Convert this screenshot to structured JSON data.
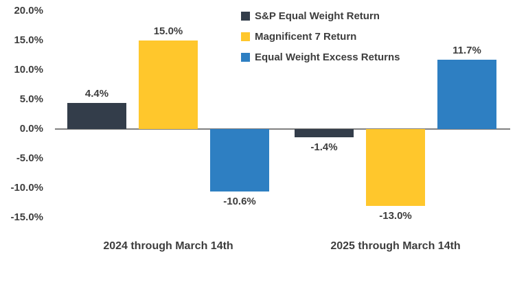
{
  "chart_data": {
    "type": "bar",
    "title": "",
    "categories": [
      "2024 through March 14th",
      "2025 through March 14th"
    ],
    "series": [
      {
        "name": "S&P Equal Weight Return",
        "color": "#333D4A",
        "values": [
          4.4,
          -1.4
        ],
        "value_labels": [
          "4.4%",
          "-1.4%"
        ]
      },
      {
        "name": "Magnificent 7 Return",
        "color": "#FFC72C",
        "values": [
          15.0,
          -13.0
        ],
        "value_labels": [
          "15.0%",
          "-13.0%"
        ]
      },
      {
        "name": "Equal Weight Excess Returns",
        "color": "#2E7FC2",
        "values": [
          -10.6,
          11.7
        ],
        "value_labels": [
          "-10.6%",
          "11.7%"
        ]
      }
    ],
    "y_axis": {
      "ylim": [
        -15,
        20
      ],
      "tick_step": 5,
      "ticks": [
        {
          "value": 20,
          "label": "20.0%"
        },
        {
          "value": 15,
          "label": "15.0%"
        },
        {
          "value": 10,
          "label": "10.0%"
        },
        {
          "value": 5,
          "label": "5.0%"
        },
        {
          "value": 0,
          "label": "0.0%"
        },
        {
          "value": -5,
          "label": "-5.0%"
        },
        {
          "value": -10,
          "label": "-10.0%"
        },
        {
          "value": -15,
          "label": "-15.0%"
        }
      ]
    },
    "grid": false,
    "legend_position": "top-center",
    "colors": {
      "axis_line": "#7F7F7F",
      "text": "#3D3D3D",
      "background": "#FFFFFF"
    }
  }
}
